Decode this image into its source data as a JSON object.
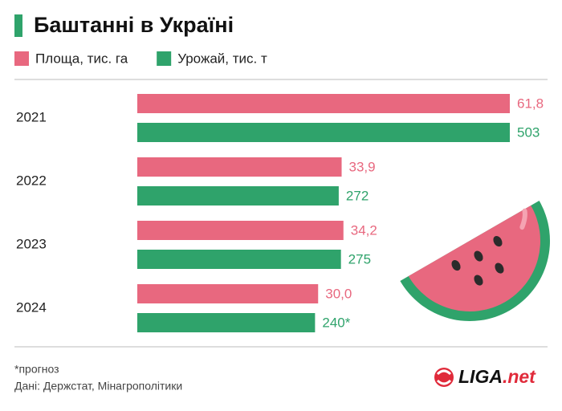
{
  "chart_data": {
    "type": "bar",
    "orientation": "horizontal",
    "title": "Баштанні в Україні",
    "categories": [
      "2021",
      "2022",
      "2023",
      "2024"
    ],
    "series": [
      {
        "name": "Площа, тис. га",
        "color": "#e8687f",
        "values": [
          61.8,
          33.9,
          34.2,
          30.0
        ],
        "value_labels": [
          "61,8",
          "33,9",
          "34,2",
          "30,0"
        ]
      },
      {
        "name": "Урожай, тис. т",
        "color": "#2fa36b",
        "values": [
          503,
          272,
          275,
          240
        ],
        "value_labels": [
          "503",
          "272",
          "275",
          "240*"
        ]
      }
    ],
    "footnote": "*прогноз",
    "source": "Дані: Держстат, Мінагрополітики",
    "logo": [
      "LIGA",
      ".net"
    ]
  }
}
